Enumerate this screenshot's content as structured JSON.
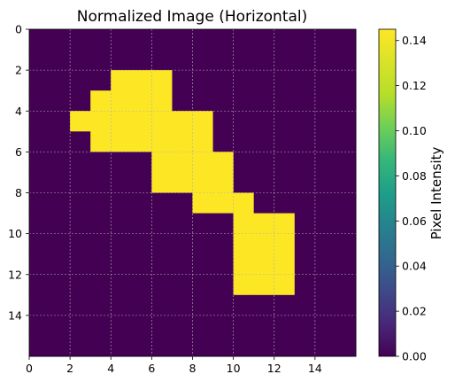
{
  "chart_data": {
    "type": "heatmap",
    "title": "Normalized Image (Horizontal)",
    "xlabel": "",
    "ylabel": "",
    "colormap": "viridis",
    "grid": true,
    "xlim": [
      0,
      16
    ],
    "ylim": [
      16,
      0
    ],
    "x_ticks": [
      0,
      2,
      4,
      6,
      8,
      10,
      12,
      14
    ],
    "y_ticks": [
      0,
      2,
      4,
      6,
      8,
      10,
      12,
      14
    ],
    "rows": 16,
    "cols": 16,
    "value_range": [
      0,
      0.145
    ],
    "background_value": 0,
    "foreground_value": 0.145,
    "foreground_cells": [
      [
        2,
        4
      ],
      [
        2,
        5
      ],
      [
        2,
        6
      ],
      [
        3,
        3
      ],
      [
        3,
        4
      ],
      [
        3,
        5
      ],
      [
        3,
        6
      ],
      [
        4,
        2
      ],
      [
        4,
        3
      ],
      [
        4,
        4
      ],
      [
        4,
        5
      ],
      [
        4,
        6
      ],
      [
        4,
        7
      ],
      [
        4,
        8
      ],
      [
        5,
        3
      ],
      [
        5,
        4
      ],
      [
        5,
        5
      ],
      [
        5,
        6
      ],
      [
        5,
        7
      ],
      [
        5,
        8
      ],
      [
        6,
        6
      ],
      [
        6,
        7
      ],
      [
        6,
        8
      ],
      [
        6,
        9
      ],
      [
        7,
        6
      ],
      [
        7,
        7
      ],
      [
        7,
        8
      ],
      [
        7,
        9
      ],
      [
        8,
        8
      ],
      [
        8,
        9
      ],
      [
        8,
        10
      ],
      [
        9,
        10
      ],
      [
        9,
        11
      ],
      [
        9,
        12
      ],
      [
        10,
        10
      ],
      [
        10,
        11
      ],
      [
        10,
        12
      ],
      [
        11,
        10
      ],
      [
        11,
        11
      ],
      [
        11,
        12
      ],
      [
        12,
        10
      ],
      [
        12,
        11
      ],
      [
        12,
        12
      ]
    ],
    "colorbar": {
      "label": "Pixel Intensity",
      "ticks": [
        "0.00",
        "0.02",
        "0.04",
        "0.06",
        "0.08",
        "0.10",
        "0.12",
        "0.14"
      ],
      "colors": {
        "low": "#440154",
        "high": "#fde725"
      }
    }
  }
}
